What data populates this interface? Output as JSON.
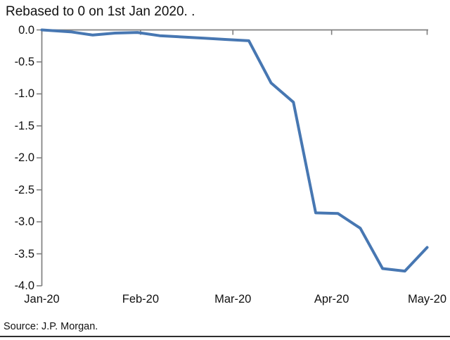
{
  "page": {
    "background_color": "#ffffff",
    "bottom_rule_color": "#2e2e2e"
  },
  "chart_data": {
    "type": "line",
    "title": "Rebased to 0 on 1st Jan 2020. .",
    "source_note": "Source: J.P. Morgan.",
    "xlabel": "",
    "ylabel": "",
    "grid": "off",
    "legend": "none",
    "axis_color": "#808080",
    "text_color": "#111111",
    "ylim": [
      -4.0,
      0.0
    ],
    "y_ticks": [
      {
        "value": 0.0,
        "label": "0.0"
      },
      {
        "value": -0.5,
        "label": "-0.5"
      },
      {
        "value": -1.0,
        "label": "-1.0"
      },
      {
        "value": -1.5,
        "label": "-1.5"
      },
      {
        "value": -2.0,
        "label": "-2.0"
      },
      {
        "value": -2.5,
        "label": "-2.5"
      },
      {
        "value": -3.0,
        "label": "-3.0"
      },
      {
        "value": -3.5,
        "label": "-3.5"
      },
      {
        "value": -4.0,
        "label": "-4.0"
      }
    ],
    "x_axis": {
      "unit": "days since 1st Jan 2020",
      "min": 0,
      "max": 121,
      "zero_line_position": "top",
      "month_ticks": [
        {
          "label": "Jan-20",
          "day": 0
        },
        {
          "label": "Feb-20",
          "day": 31
        },
        {
          "label": "Mar-20",
          "day": 60
        },
        {
          "label": "Apr-20",
          "day": 91
        },
        {
          "label": "May-20",
          "day": 121
        }
      ]
    },
    "series": [
      {
        "name": "Rebased to 0 on 1st Jan 2020",
        "color": "#4777B2",
        "line_width": 4,
        "points": [
          {
            "day": 0,
            "value": 0.0
          },
          {
            "day": 9,
            "value": -0.03
          },
          {
            "day": 16,
            "value": -0.08
          },
          {
            "day": 23,
            "value": -0.05
          },
          {
            "day": 30,
            "value": -0.04
          },
          {
            "day": 37,
            "value": -0.09
          },
          {
            "day": 44,
            "value": -0.11
          },
          {
            "day": 51,
            "value": -0.13
          },
          {
            "day": 58,
            "value": -0.15
          },
          {
            "day": 65,
            "value": -0.17
          },
          {
            "day": 72,
            "value": -0.83
          },
          {
            "day": 79,
            "value": -1.13
          },
          {
            "day": 86,
            "value": -2.86
          },
          {
            "day": 93,
            "value": -2.87
          },
          {
            "day": 100,
            "value": -3.1
          },
          {
            "day": 107,
            "value": -3.73
          },
          {
            "day": 114,
            "value": -3.77
          },
          {
            "day": 121,
            "value": -3.4
          }
        ]
      }
    ]
  }
}
